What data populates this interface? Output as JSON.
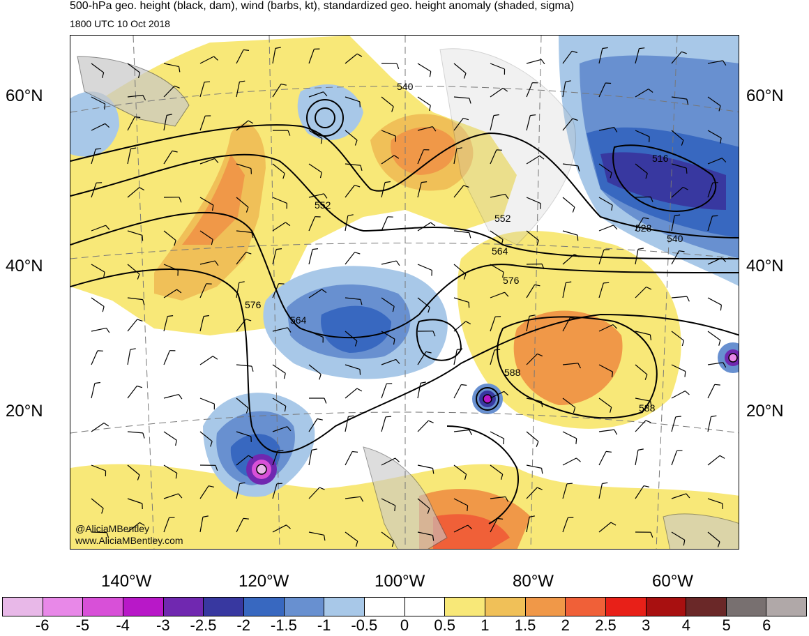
{
  "header": {
    "title": "500-hPa geo. height (black, dam), wind (barbs, kt), standardized geo. height anomaly (shaded, sigma)",
    "valid_time": "1800 UTC 10 Oct 2018"
  },
  "map": {
    "lat_labels": [
      "60°N",
      "40°N",
      "20°N"
    ],
    "lon_labels": [
      "140°W",
      "120°W",
      "100°W",
      "80°W",
      "60°W"
    ],
    "contour_labels": [
      "540",
      "516",
      "552",
      "552",
      "528",
      "540",
      "564",
      "576",
      "576",
      "564",
      "588",
      "588"
    ],
    "credit": {
      "handle": "@AliciaMBentley",
      "website": "www.AliciaMBentley.com"
    }
  },
  "colorbar": {
    "labels": [
      "-6",
      "-5",
      "-4",
      "-3",
      "-2.5",
      "-2",
      "-1.5",
      "-1",
      "-0.5",
      "0",
      "0.5",
      "1",
      "1.5",
      "2",
      "2.5",
      "3",
      "4",
      "5",
      "6"
    ],
    "colors": [
      "#e8b8e8",
      "#e888e8",
      "#d850d8",
      "#b818c8",
      "#7028b0",
      "#3838a0",
      "#3868c0",
      "#6890d0",
      "#a8c8e8",
      "#ffffff",
      "#ffffff",
      "#f8e878",
      "#f0c058",
      "#f09848",
      "#f06038",
      "#e82018",
      "#a81010",
      "#6a2828",
      "#787070",
      "#b0a8a8"
    ]
  }
}
